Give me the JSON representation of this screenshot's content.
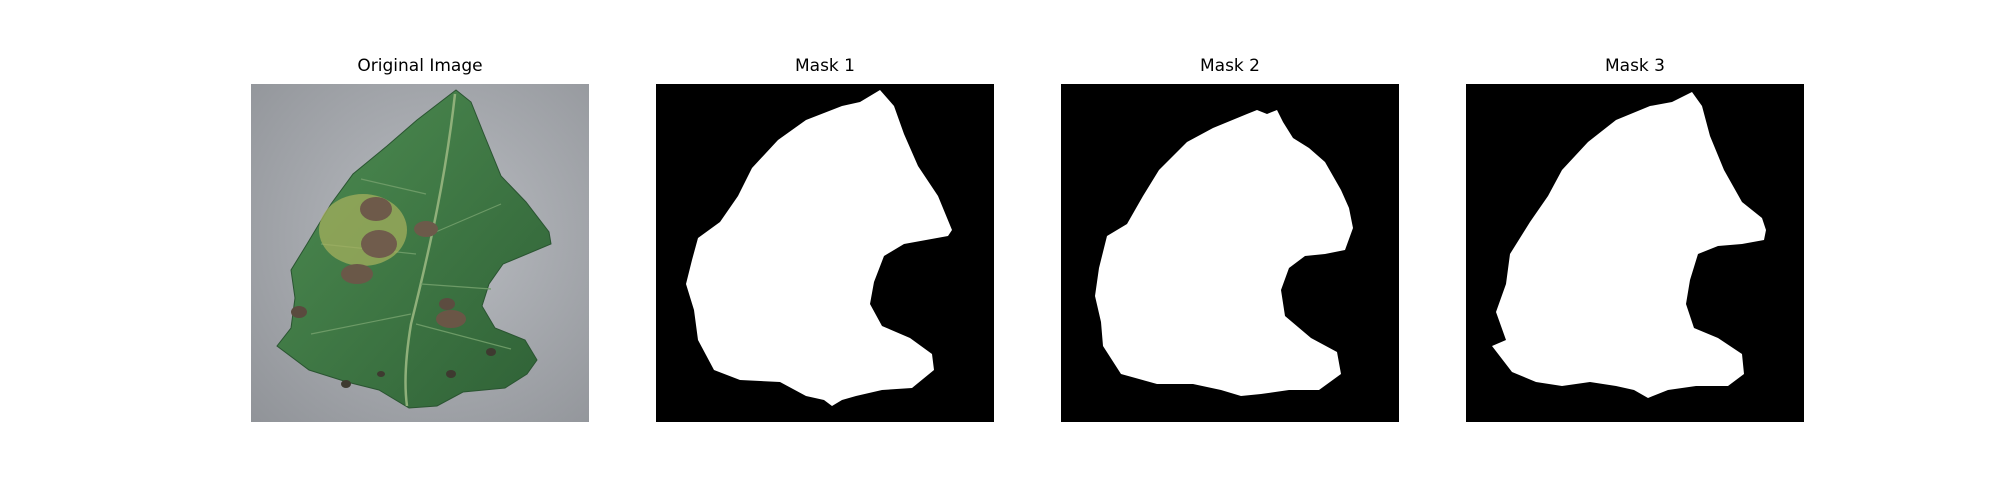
{
  "panels": [
    {
      "title": "Original Image",
      "kind": "photo",
      "subject": "leaf-photo"
    },
    {
      "title": "Mask 1",
      "kind": "mask",
      "subject": "segmentation-mask"
    },
    {
      "title": "Mask 2",
      "kind": "mask",
      "subject": "segmentation-mask"
    },
    {
      "title": "Mask 3",
      "kind": "mask",
      "subject": "segmentation-mask"
    }
  ],
  "colors": {
    "background": "#ffffff",
    "mask_background": "#000000",
    "mask_foreground": "#ffffff",
    "photo_background": "#a9acb1",
    "leaf": "#3f7a45",
    "leaf_edge": "#2f5e35",
    "lesion": "#6e5a4a",
    "halo": "#b6b862"
  }
}
